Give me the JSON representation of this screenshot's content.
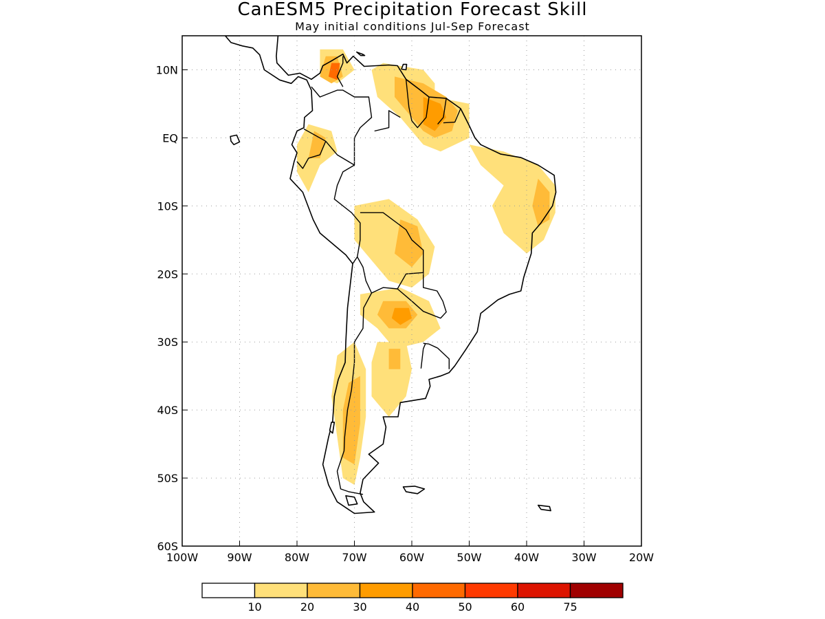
{
  "title": "CanESM5 Precipitation Forecast Skill",
  "subtitle": "May initial conditions  Jul-Sep Forecast",
  "map": {
    "lon_range": [
      -100,
      -20
    ],
    "lat_range": [
      -60,
      15
    ],
    "lon_ticks": [
      {
        "value": -100,
        "label": "100W"
      },
      {
        "value": -90,
        "label": "90W"
      },
      {
        "value": -80,
        "label": "80W"
      },
      {
        "value": -70,
        "label": "70W"
      },
      {
        "value": -60,
        "label": "60W"
      },
      {
        "value": -50,
        "label": "50W"
      },
      {
        "value": -40,
        "label": "40W"
      },
      {
        "value": -30,
        "label": "30W"
      },
      {
        "value": -20,
        "label": "20W"
      }
    ],
    "lat_ticks": [
      {
        "value": 10,
        "label": "10N"
      },
      {
        "value": 0,
        "label": "EQ"
      },
      {
        "value": -10,
        "label": "10S"
      },
      {
        "value": -20,
        "label": "20S"
      },
      {
        "value": -30,
        "label": "30S"
      },
      {
        "value": -40,
        "label": "40S"
      },
      {
        "value": -50,
        "label": "50S"
      },
      {
        "value": -60,
        "label": "60S"
      }
    ],
    "grid": "dotted"
  },
  "legend": {
    "bins": [
      {
        "color": "#ffffff",
        "label": ""
      },
      {
        "color": "#ffe07a",
        "label": "10"
      },
      {
        "color": "#ffbb38",
        "label": "20"
      },
      {
        "color": "#ff9c00",
        "label": "30"
      },
      {
        "color": "#ff6a00",
        "label": "40"
      },
      {
        "color": "#ff3a00",
        "label": "50"
      },
      {
        "color": "#dd1400",
        "label": "60"
      },
      {
        "color": "#a00000",
        "label": "75"
      }
    ]
  },
  "skill_areas": [
    {
      "level": 10,
      "points": [
        [
          -76,
          13
        ],
        [
          -72,
          13
        ],
        [
          -70,
          10
        ],
        [
          -73,
          8
        ],
        [
          -76,
          9
        ]
      ]
    },
    {
      "level": 20,
      "points": [
        [
          -75,
          12
        ],
        [
          -73,
          12
        ],
        [
          -72,
          9
        ],
        [
          -74,
          8
        ],
        [
          -76,
          9
        ]
      ]
    },
    {
      "level": 40,
      "points": [
        [
          -74,
          11
        ],
        [
          -72.5,
          11
        ],
        [
          -73,
          8.5
        ],
        [
          -74.5,
          9
        ]
      ]
    },
    {
      "level": 10,
      "points": [
        [
          -65,
          11
        ],
        [
          -58,
          10
        ],
        [
          -56,
          8
        ],
        [
          -56,
          6
        ],
        [
          -50,
          5
        ],
        [
          -50,
          0
        ],
        [
          -55,
          -2
        ],
        [
          -58,
          -1
        ],
        [
          -62,
          3
        ],
        [
          -66,
          6
        ],
        [
          -67,
          10
        ]
      ]
    },
    {
      "level": 20,
      "points": [
        [
          -63,
          9
        ],
        [
          -58,
          8
        ],
        [
          -54,
          6
        ],
        [
          -52,
          4
        ],
        [
          -53,
          1
        ],
        [
          -56,
          0
        ],
        [
          -58,
          1
        ],
        [
          -61,
          4
        ],
        [
          -63,
          6
        ]
      ]
    },
    {
      "level": 30,
      "points": [
        [
          -58,
          6
        ],
        [
          -55,
          5
        ],
        [
          -54,
          3
        ],
        [
          -56,
          1
        ],
        [
          -58,
          2
        ]
      ]
    },
    {
      "level": 10,
      "points": [
        [
          -78,
          2
        ],
        [
          -74,
          1
        ],
        [
          -73,
          -2
        ],
        [
          -76,
          -4
        ],
        [
          -78,
          -8
        ],
        [
          -80,
          -5
        ],
        [
          -80,
          -1
        ]
      ]
    },
    {
      "level": 20,
      "points": [
        [
          -77,
          1
        ],
        [
          -75,
          0
        ],
        [
          -76,
          -3
        ],
        [
          -78,
          -3
        ]
      ]
    },
    {
      "level": 10,
      "points": [
        [
          -50,
          -1
        ],
        [
          -44,
          -2
        ],
        [
          -38,
          -4
        ],
        [
          -35,
          -7
        ],
        [
          -35,
          -11
        ],
        [
          -37,
          -15
        ],
        [
          -40,
          -17
        ],
        [
          -44,
          -14
        ],
        [
          -46,
          -10
        ],
        [
          -44,
          -7
        ],
        [
          -48,
          -4
        ]
      ]
    },
    {
      "level": 20,
      "points": [
        [
          -38,
          -6
        ],
        [
          -36,
          -8
        ],
        [
          -36,
          -12
        ],
        [
          -38,
          -13
        ],
        [
          -39,
          -10
        ]
      ]
    },
    {
      "level": 10,
      "points": [
        [
          -70,
          -10
        ],
        [
          -64,
          -9
        ],
        [
          -59,
          -12
        ],
        [
          -56,
          -16
        ],
        [
          -57,
          -20
        ],
        [
          -60,
          -22
        ],
        [
          -64,
          -21
        ],
        [
          -67,
          -18
        ],
        [
          -70,
          -15
        ]
      ]
    },
    {
      "level": 20,
      "points": [
        [
          -62,
          -12
        ],
        [
          -59,
          -13
        ],
        [
          -58,
          -17
        ],
        [
          -60,
          -19
        ],
        [
          -63,
          -17
        ]
      ]
    },
    {
      "level": 10,
      "points": [
        [
          -69,
          -23
        ],
        [
          -62,
          -22
        ],
        [
          -57,
          -24
        ],
        [
          -55,
          -28
        ],
        [
          -58,
          -30
        ],
        [
          -63,
          -31
        ],
        [
          -66,
          -28
        ],
        [
          -69,
          -26
        ]
      ]
    },
    {
      "level": 20,
      "points": [
        [
          -65,
          -24
        ],
        [
          -61,
          -24
        ],
        [
          -59,
          -26
        ],
        [
          -61,
          -28
        ],
        [
          -64,
          -28
        ],
        [
          -66,
          -26
        ]
      ]
    },
    {
      "level": 30,
      "points": [
        [
          -63,
          -25
        ],
        [
          -60.5,
          -25
        ],
        [
          -60,
          -26.5
        ],
        [
          -62,
          -27.5
        ],
        [
          -63.5,
          -26.5
        ]
      ]
    },
    {
      "level": 10,
      "points": [
        [
          -66,
          -30
        ],
        [
          -61,
          -30
        ],
        [
          -60,
          -34
        ],
        [
          -61,
          -38
        ],
        [
          -64,
          -41
        ],
        [
          -67,
          -38
        ],
        [
          -67,
          -33
        ]
      ]
    },
    {
      "level": 20,
      "points": [
        [
          -64,
          -31
        ],
        [
          -62,
          -31
        ],
        [
          -62,
          -34
        ],
        [
          -64,
          -34
        ]
      ]
    },
    {
      "level": 10,
      "points": [
        [
          -73,
          -32
        ],
        [
          -70,
          -30
        ],
        [
          -68,
          -34
        ],
        [
          -68,
          -41
        ],
        [
          -69,
          -47
        ],
        [
          -70,
          -51
        ],
        [
          -72,
          -50
        ],
        [
          -73,
          -44
        ],
        [
          -74,
          -38
        ]
      ]
    },
    {
      "level": 20,
      "points": [
        [
          -71,
          -36
        ],
        [
          -69,
          -35
        ],
        [
          -69,
          -42
        ],
        [
          -70,
          -48
        ],
        [
          -72,
          -47
        ],
        [
          -72,
          -40
        ]
      ]
    }
  ]
}
